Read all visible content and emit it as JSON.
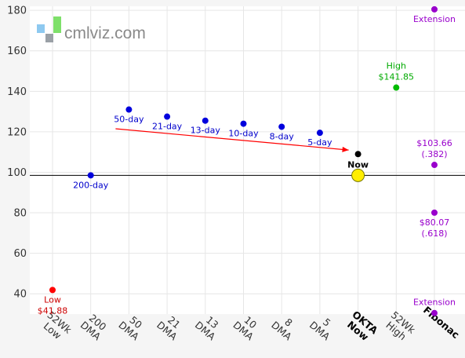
{
  "brand": {
    "text": "cmlviz.com"
  },
  "chart_data": {
    "type": "scatter",
    "ylim": [
      30,
      182
    ],
    "yticks": [
      40,
      60,
      80,
      100,
      120,
      140,
      160,
      180
    ],
    "categories": [
      {
        "lines": [
          "52Wk",
          "Low"
        ],
        "bold": false
      },
      {
        "lines": [
          "200",
          "DMA"
        ],
        "bold": false
      },
      {
        "lines": [
          "50",
          "DMA"
        ],
        "bold": false
      },
      {
        "lines": [
          "21",
          "DMA"
        ],
        "bold": false
      },
      {
        "lines": [
          "13",
          "DMA"
        ],
        "bold": false
      },
      {
        "lines": [
          "10",
          "DMA"
        ],
        "bold": false
      },
      {
        "lines": [
          "8",
          "DMA"
        ],
        "bold": false
      },
      {
        "lines": [
          "5",
          "DMA"
        ],
        "bold": false
      },
      {
        "lines": [
          "OKTA",
          "Now"
        ],
        "bold": true
      },
      {
        "lines": [
          "52Wk",
          "High"
        ],
        "bold": false
      },
      {
        "lines": [
          "Fibonac"
        ],
        "bold": true
      }
    ],
    "points": [
      {
        "name": "low-52wk-point",
        "cat": 0,
        "y": 41.88,
        "color": "#ff0000",
        "r": 4,
        "label": [
          "Low",
          "$41.88"
        ],
        "label_pos": "below",
        "label_color": "#cc0000"
      },
      {
        "name": "dma-200-point",
        "cat": 1,
        "y": 98.5,
        "color": "#0000dd",
        "r": 4,
        "label": [
          "200-day"
        ],
        "label_pos": "below",
        "label_color": "#0000cc"
      },
      {
        "name": "dma-50-point",
        "cat": 2,
        "y": 131,
        "color": "#0000dd",
        "r": 4,
        "label": [
          "50-day"
        ],
        "label_pos": "below",
        "label_color": "#0000cc"
      },
      {
        "name": "dma-21-point",
        "cat": 3,
        "y": 127.5,
        "color": "#0000dd",
        "r": 4,
        "label": [
          "21-day"
        ],
        "label_pos": "below",
        "label_color": "#0000cc"
      },
      {
        "name": "dma-13-point",
        "cat": 4,
        "y": 125.5,
        "color": "#0000dd",
        "r": 4,
        "label": [
          "13-day"
        ],
        "label_pos": "below",
        "label_color": "#0000cc"
      },
      {
        "name": "dma-10-point",
        "cat": 5,
        "y": 124,
        "color": "#0000dd",
        "r": 4,
        "label": [
          "10-day"
        ],
        "label_pos": "below",
        "label_color": "#0000cc"
      },
      {
        "name": "dma-8-point",
        "cat": 6,
        "y": 122.5,
        "color": "#0000dd",
        "r": 4,
        "label": [
          "8-day"
        ],
        "label_pos": "below",
        "label_color": "#0000cc"
      },
      {
        "name": "dma-5-point",
        "cat": 7,
        "y": 119.5,
        "color": "#0000dd",
        "r": 4,
        "label": [
          "5-day"
        ],
        "label_pos": "below",
        "label_color": "#0000cc"
      },
      {
        "name": "now-marker-point",
        "cat": 8,
        "y": 109,
        "color": "#000000",
        "r": 4,
        "label": [
          "Now"
        ],
        "label_pos": "below-bold",
        "label_color": "#000000"
      },
      {
        "name": "now-price-point",
        "cat": 8,
        "y": 98.5,
        "color": "#ffee00",
        "r": 8,
        "stroke": "#777700"
      },
      {
        "name": "high-52wk-point",
        "cat": 9,
        "y": 141.85,
        "color": "#00bb00",
        "r": 4,
        "label": [
          "High",
          "$141.85"
        ],
        "label_pos": "above",
        "label_color": "#00aa00"
      },
      {
        "name": "fib-extension-top-point",
        "cat": 10,
        "y": 180.5,
        "color": "#9900cc",
        "r": 4,
        "label": [
          "Extension"
        ],
        "label_pos": "below",
        "label_color": "#9900cc"
      },
      {
        "name": "fib-382-point",
        "cat": 10,
        "y": 103.66,
        "color": "#9900cc",
        "r": 4,
        "label": [
          "$103.66",
          "(.382)"
        ],
        "label_pos": "above",
        "label_color": "#9900cc"
      },
      {
        "name": "fib-618-point",
        "cat": 10,
        "y": 80.07,
        "color": "#9900cc",
        "r": 4,
        "label": [
          "$80.07",
          "(.618)"
        ],
        "label_pos": "below",
        "label_color": "#9900cc"
      },
      {
        "name": "fib-extension-bottom-point",
        "cat": 10,
        "y": 30.5,
        "color": "#9900cc",
        "r": 4,
        "label": [
          "Extension"
        ],
        "label_pos": "above",
        "label_color": "#9900cc"
      }
    ],
    "reference_line": {
      "y": 98.5,
      "color": "#000000"
    },
    "arrow": {
      "from": {
        "cat": 2,
        "y": 121.5
      },
      "to": {
        "cat": 8,
        "y": 111
      },
      "color": "#ff0000"
    },
    "grid": true
  }
}
